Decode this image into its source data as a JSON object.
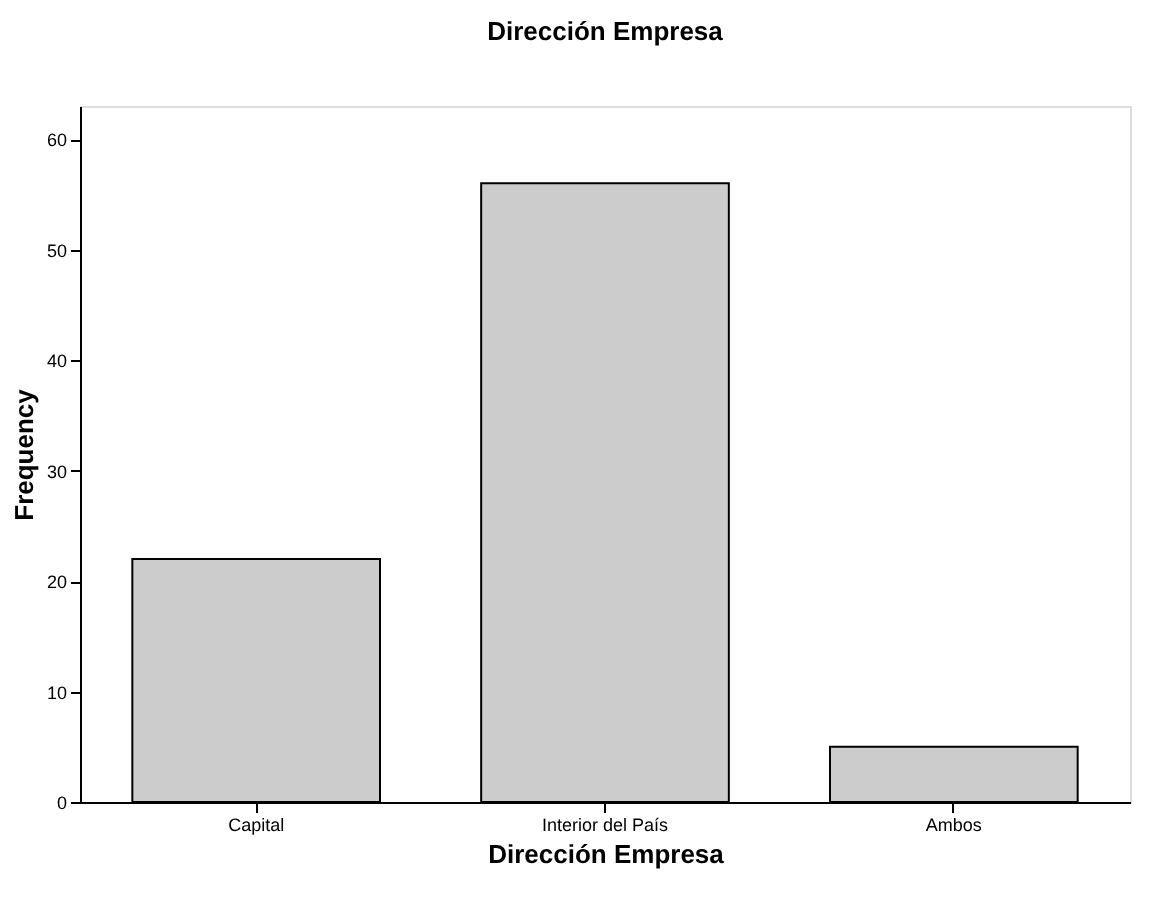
{
  "chart_data": {
    "type": "bar",
    "title": "Dirección Empresa",
    "xlabel": "Dirección Empresa",
    "ylabel": "Frequency",
    "categories": [
      "Capital",
      "Interior del País",
      "Ambos"
    ],
    "values": [
      22,
      56,
      5
    ],
    "color": "#cccccc",
    "ylim": [
      0,
      63
    ],
    "yticks": [
      0,
      10,
      20,
      30,
      40,
      50,
      60
    ],
    "grid": false
  }
}
